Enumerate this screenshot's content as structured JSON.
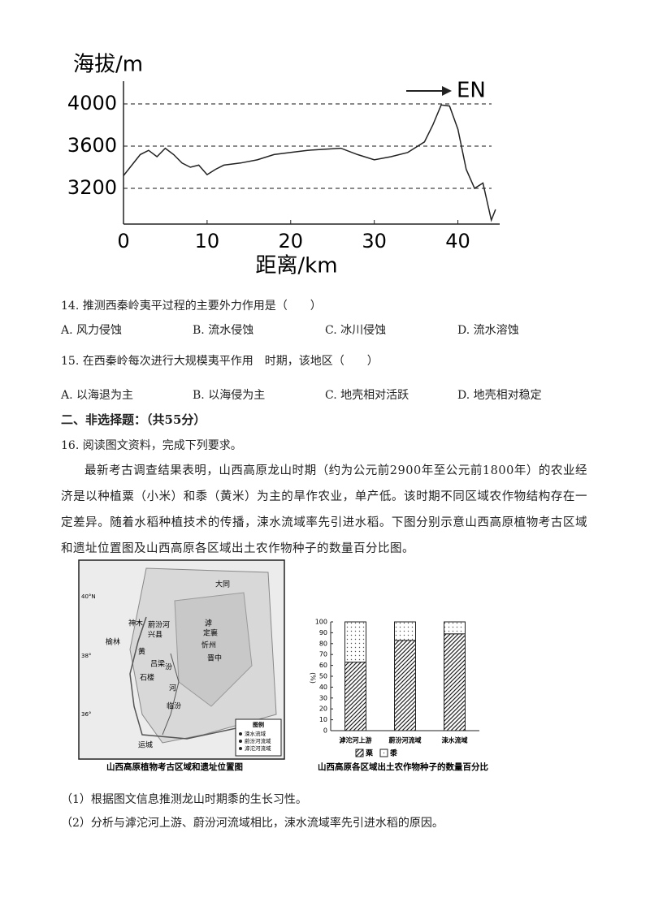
{
  "chart_data": [
    {
      "type": "line",
      "y_label": "海拔/m",
      "x_label": "距离/km",
      "direction": "EN",
      "x": [
        0,
        1,
        2,
        3,
        4,
        5,
        6,
        7,
        8,
        9,
        10,
        11,
        12,
        14,
        16,
        18,
        20,
        22,
        24,
        26,
        28,
        30,
        32,
        34,
        36,
        37,
        38,
        39,
        40,
        41,
        42,
        43,
        44,
        44.5
      ],
      "values": [
        3320,
        3420,
        3520,
        3560,
        3500,
        3580,
        3520,
        3440,
        3400,
        3420,
        3330,
        3380,
        3420,
        3440,
        3470,
        3520,
        3540,
        3560,
        3570,
        3580,
        3520,
        3470,
        3500,
        3540,
        3640,
        3800,
        3990,
        3980,
        3760,
        3380,
        3200,
        3250,
        2900,
        3000
      ],
      "color": "#222",
      "xlim": [
        0,
        45
      ],
      "ylim": [
        2862,
        4215
      ],
      "xticks": [
        0,
        10,
        20,
        30,
        40
      ],
      "yticks": [
        3200,
        3600,
        4000
      ],
      "grid": true
    },
    {
      "type": "bar",
      "stacked": true,
      "title": "山西高原各区域出土农作物种子的数量百分比",
      "y_label": "(%)",
      "categories": [
        "滹沱河上游",
        "蔚汾河流域",
        "涑水流域"
      ],
      "series": [
        {
          "name": "粟",
          "color": "#222",
          "pattern": "hatch",
          "values": [
            63,
            83,
            89
          ]
        },
        {
          "name": "黍",
          "color": "#555",
          "pattern": "dots",
          "values": [
            37,
            17,
            11
          ]
        }
      ],
      "ylim": [
        0,
        100
      ],
      "yticks": [
        0,
        10,
        20,
        30,
        40,
        50,
        60,
        70,
        80,
        90,
        100
      ]
    }
  ],
  "questions": [
    {
      "stem": "14. 推测西秦岭夷平过程的主要外力作用是（　　）",
      "options": [
        "A. 风力侵蚀",
        "B. 流水侵蚀",
        "C. 冰川侵蚀",
        "D. 流水溶蚀"
      ]
    },
    {
      "stem": "15. 在西秦岭每次进行大规模夷平作用　时期，该地区（　　）",
      "options": [
        "A. 以海退为主",
        "B. 以海侵为主",
        "C. 地壳相对活跃",
        "D. 地壳相对稳定"
      ]
    }
  ],
  "section": "二、非选择题：（共55分）",
  "q16": {
    "stem": "16. 阅读图文资料，完成下列要求。",
    "paragraph": "最新考古调查结果表明，山西高原龙山时期（约为公元前2900年至公元前1800年）的农业经济是以种植粟（小米）和黍（黄米）为主的旱作农业，单产低。该时期不同区域农作物结构存在一定差异。随着水稻种植技术的传播，涑水流域率先引进水稻。下图分别示意山西高原植物考古区域和遗址位置图及山西高原各区域出土农作物种子的数量百分比图。",
    "subs": [
      "（1）根据图文信息推测龙山时期黍的生长习性。",
      "（2）分析与滹沱河上游、蔚汾河流域相比，涑水流域率先引进水稻的原因。"
    ]
  },
  "map": {
    "caption": "山西高原植物考古区域和遗址位置图",
    "labels": [
      "40°N",
      "38°",
      "36°",
      "大同",
      "神木",
      "蔚汾河",
      "兴县",
      "榆林",
      "黄",
      "吕梁",
      "石楼",
      "汾",
      "河",
      "临汾",
      "运城",
      "滹",
      "定襄",
      "忻州",
      "晋中"
    ],
    "legend_title": "图例",
    "legend": [
      "涑水流域",
      "蔚汾河流域",
      "滹沱河流域"
    ]
  }
}
